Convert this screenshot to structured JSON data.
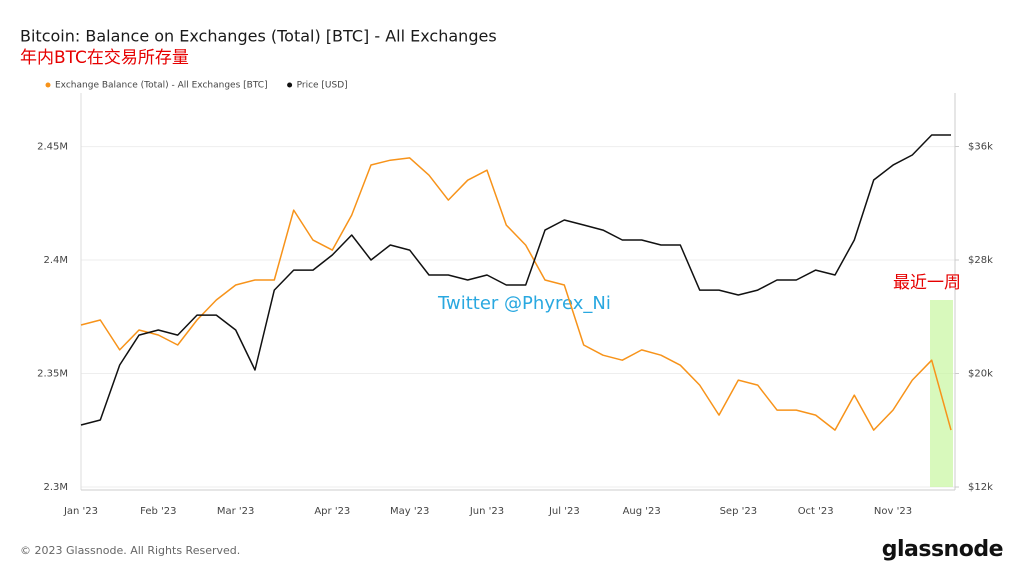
{
  "chart_data": {
    "type": "line",
    "title": "Bitcoin: Balance on Exchanges (Total) [BTC] - All Exchanges",
    "subtitle": "年内BTC在交易所存量",
    "annotation": "最近一周",
    "watermark": "Twitter @Phyrex_Ni",
    "footer": "© 2023 Glassnode. All Rights Reserved.",
    "logo": "glassnode",
    "categories": [
      "Jan '23",
      null,
      null,
      null,
      "Feb '23",
      null,
      null,
      null,
      "Mar '23",
      null,
      null,
      null,
      null,
      "Apr '23",
      null,
      null,
      null,
      "May '23",
      null,
      null,
      null,
      "Jun '23",
      null,
      null,
      null,
      "Jul '23",
      null,
      null,
      null,
      "Aug '23",
      null,
      null,
      null,
      null,
      "Sep '23",
      null,
      null,
      null,
      "Oct '23",
      null,
      null,
      null,
      "Nov '23",
      null,
      null,
      null
    ],
    "series": [
      {
        "name": "Exchange Balance (Total) - All Exchanges [BTC]",
        "color": "#f7931a",
        "values": [
          2371400,
          2373600,
          2360400,
          2369200,
          2367000,
          2362600,
          2373600,
          2382400,
          2389000,
          2391200,
          2391200,
          2422000,
          2408800,
          2404400,
          2419800,
          2441900,
          2444000,
          2445000,
          2437400,
          2426400,
          2435200,
          2439600,
          2415400,
          2406600,
          2391200,
          2389000,
          2362600,
          2358100,
          2355900,
          2360400,
          2358100,
          2353700,
          2344900,
          2331700,
          2347100,
          2344900,
          2333900,
          2333900,
          2331700,
          2325100,
          2340500,
          2325100,
          2333900,
          2347100,
          2355900,
          2325100
        ]
      },
      {
        "name": "Price [USD]",
        "color": "#111111",
        "axis": "y2",
        "values": [
          16370,
          16720,
          20600,
          22710,
          23070,
          22710,
          24120,
          24120,
          23070,
          20250,
          25880,
          27290,
          27290,
          28350,
          29760,
          28000,
          29060,
          28700,
          26940,
          26940,
          26590,
          26940,
          26240,
          26240,
          30110,
          30820,
          30470,
          30110,
          29410,
          29410,
          29060,
          29060,
          25880,
          25880,
          25530,
          25880,
          26590,
          26590,
          27290,
          26940,
          29410,
          33640,
          34690,
          35400,
          36810,
          36810
        ]
      }
    ],
    "ylim": [
      2298700,
      2473600
    ],
    "yticks": [
      {
        "value": 2300000,
        "label": "2.3M"
      },
      {
        "value": 2350000,
        "label": "2.35M"
      },
      {
        "value": 2400000,
        "label": "2.4M"
      },
      {
        "value": 2450000,
        "label": "2.45M"
      }
    ],
    "y2lim": [
      11790,
      39770
    ],
    "y2ticks": [
      {
        "value": 12000,
        "label": "$12k"
      },
      {
        "value": 20000,
        "label": "$20k"
      },
      {
        "value": 28000,
        "label": "$28k"
      },
      {
        "value": 36000,
        "label": "$36k"
      }
    ],
    "grid": true
  }
}
